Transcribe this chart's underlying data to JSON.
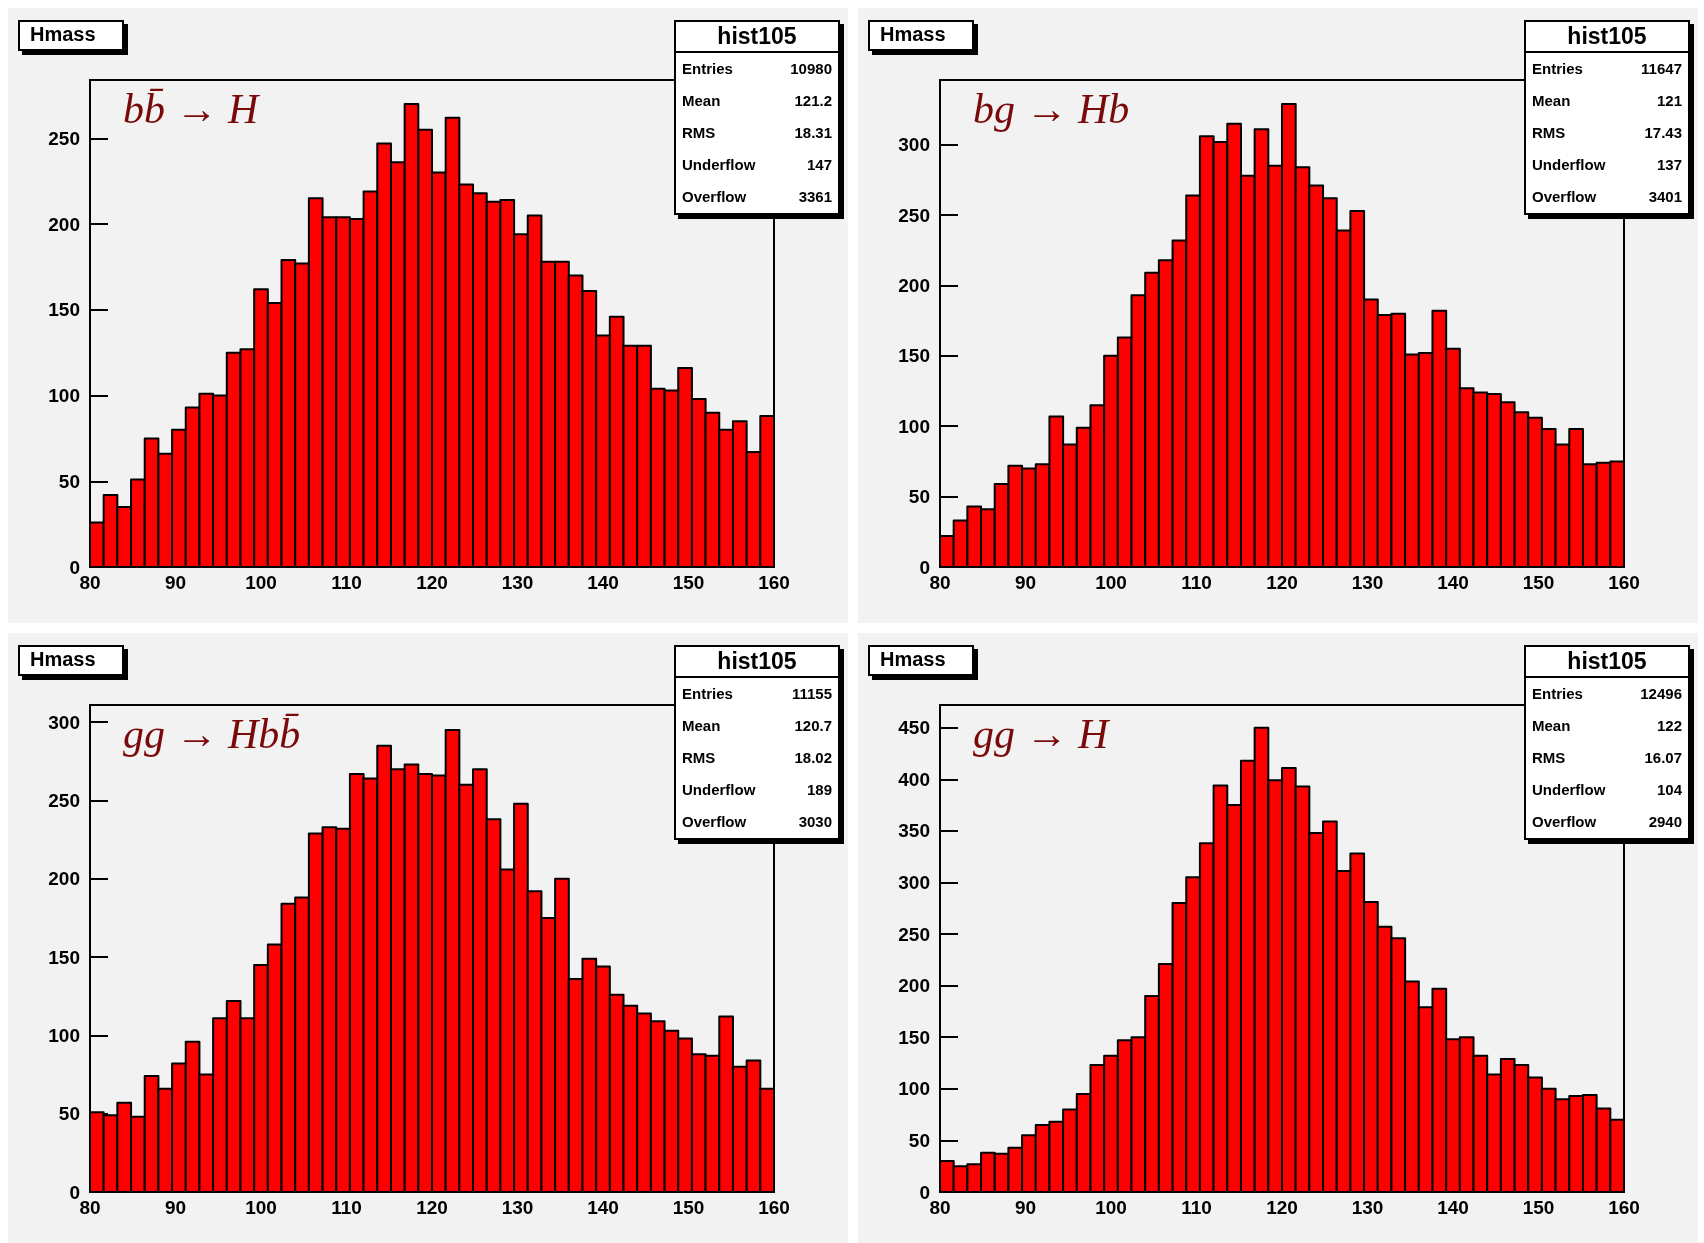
{
  "chart_data": [
    {
      "type": "histogram",
      "title": "Hmass",
      "color": "#ff0000",
      "xlim": [
        80,
        160
      ],
      "xticks": [
        80,
        90,
        100,
        110,
        120,
        130,
        140,
        150,
        160
      ],
      "ylim": [
        0,
        284
      ],
      "yticks": [
        0,
        50,
        100,
        150,
        200,
        250
      ],
      "grid": false,
      "bins": [
        80,
        81.6,
        83.2,
        84.8,
        86.4,
        88,
        89.6,
        91.2,
        92.8,
        94.4,
        96,
        97.6,
        99.2,
        100.8,
        102.4,
        104,
        105.6,
        107.2,
        108.8,
        110.4,
        112,
        113.6,
        115.2,
        116.8,
        118.4,
        120,
        121.6,
        123.2,
        124.8,
        126.4,
        128,
        129.6,
        131.2,
        132.8,
        134.4,
        136,
        137.6,
        139.2,
        140.8,
        142.4,
        144,
        145.6,
        147.2,
        148.8,
        150.4,
        152,
        153.6,
        155.2,
        156.8,
        158.4,
        160
      ],
      "values": [
        26,
        42,
        35,
        51,
        75,
        66,
        80,
        93,
        101,
        100,
        125,
        127,
        162,
        154,
        179,
        177,
        215,
        204,
        204,
        203,
        219,
        247,
        236,
        270,
        255,
        230,
        262,
        223,
        218,
        213,
        214,
        194,
        205,
        178,
        178,
        170,
        161,
        135,
        146,
        129,
        129,
        104,
        103,
        116,
        98,
        90,
        80,
        85,
        67,
        88
      ],
      "annotations": [
        "bb̄ → H",
        "hist105",
        "Entries",
        "10980",
        "Mean",
        "121.2",
        "RMS",
        "18.31",
        "Underflow",
        "147",
        "Overflow",
        "3361"
      ]
    },
    {
      "type": "histogram",
      "title": "Hmass",
      "color": "#ff0000",
      "xlim": [
        80,
        160
      ],
      "xticks": [
        80,
        90,
        100,
        110,
        120,
        130,
        140,
        150,
        160
      ],
      "ylim": [
        0,
        346
      ],
      "yticks": [
        0,
        50,
        100,
        150,
        200,
        250,
        300
      ],
      "grid": false,
      "bins": [
        80,
        81.6,
        83.2,
        84.8,
        86.4,
        88,
        89.6,
        91.2,
        92.8,
        94.4,
        96,
        97.6,
        99.2,
        100.8,
        102.4,
        104,
        105.6,
        107.2,
        108.8,
        110.4,
        112,
        113.6,
        115.2,
        116.8,
        118.4,
        120,
        121.6,
        123.2,
        124.8,
        126.4,
        128,
        129.6,
        131.2,
        132.8,
        134.4,
        136,
        137.6,
        139.2,
        140.8,
        142.4,
        144,
        145.6,
        147.2,
        148.8,
        150.4,
        152,
        153.6,
        155.2,
        156.8,
        158.4,
        160
      ],
      "values": [
        22,
        33,
        43,
        41,
        59,
        72,
        70,
        73,
        107,
        87,
        99,
        115,
        150,
        163,
        193,
        209,
        218,
        232,
        264,
        306,
        302,
        315,
        278,
        311,
        285,
        329,
        284,
        271,
        262,
        239,
        253,
        190,
        179,
        180,
        151,
        152,
        182,
        155,
        127,
        124,
        123,
        117,
        110,
        106,
        98,
        87,
        98,
        73,
        74,
        75
      ],
      "annotations": [
        "bg → Hb",
        "hist105",
        "Entries",
        "11647",
        "Mean",
        "121",
        "RMS",
        "17.43",
        "Underflow",
        "137",
        "Overflow",
        "3401"
      ]
    },
    {
      "type": "histogram",
      "title": "Hmass",
      "color": "#ff0000",
      "xlim": [
        80,
        160
      ],
      "xticks": [
        80,
        90,
        100,
        110,
        120,
        130,
        140,
        150,
        160
      ],
      "ylim": [
        0,
        311
      ],
      "yticks": [
        0,
        50,
        100,
        150,
        200,
        250,
        300
      ],
      "grid": false,
      "bins": [
        80,
        81.6,
        83.2,
        84.8,
        86.4,
        88,
        89.6,
        91.2,
        92.8,
        94.4,
        96,
        97.6,
        99.2,
        100.8,
        102.4,
        104,
        105.6,
        107.2,
        108.8,
        110.4,
        112,
        113.6,
        115.2,
        116.8,
        118.4,
        120,
        121.6,
        123.2,
        124.8,
        126.4,
        128,
        129.6,
        131.2,
        132.8,
        134.4,
        136,
        137.6,
        139.2,
        140.8,
        142.4,
        144,
        145.6,
        147.2,
        148.8,
        150.4,
        152,
        153.6,
        155.2,
        156.8,
        158.4,
        160
      ],
      "values": [
        51,
        49,
        57,
        48,
        74,
        66,
        82,
        96,
        75,
        111,
        122,
        111,
        145,
        158,
        184,
        188,
        229,
        233,
        232,
        267,
        264,
        285,
        270,
        273,
        267,
        266,
        295,
        260,
        270,
        238,
        206,
        248,
        192,
        175,
        200,
        136,
        149,
        144,
        126,
        119,
        114,
        109,
        103,
        98,
        88,
        87,
        112,
        80,
        84,
        66
      ],
      "annotations": [
        "gg → Hbb̄",
        "hist105",
        "Entries",
        "11155",
        "Mean",
        "120.7",
        "RMS",
        "18.02",
        "Underflow",
        "189",
        "Overflow",
        "3030"
      ]
    },
    {
      "type": "histogram",
      "title": "Hmass",
      "color": "#ff0000",
      "xlim": [
        80,
        160
      ],
      "xticks": [
        80,
        90,
        100,
        110,
        120,
        130,
        140,
        150,
        160
      ],
      "ylim": [
        0,
        472
      ],
      "yticks": [
        0,
        50,
        100,
        150,
        200,
        250,
        300,
        350,
        400,
        450
      ],
      "grid": false,
      "bins": [
        80,
        81.6,
        83.2,
        84.8,
        86.4,
        88,
        89.6,
        91.2,
        92.8,
        94.4,
        96,
        97.6,
        99.2,
        100.8,
        102.4,
        104,
        105.6,
        107.2,
        108.8,
        110.4,
        112,
        113.6,
        115.2,
        116.8,
        118.4,
        120,
        121.6,
        123.2,
        124.8,
        126.4,
        128,
        129.6,
        131.2,
        132.8,
        134.4,
        136,
        137.6,
        139.2,
        140.8,
        142.4,
        144,
        145.6,
        147.2,
        148.8,
        150.4,
        152,
        153.6,
        155.2,
        156.8,
        158.4,
        160
      ],
      "values": [
        30,
        25,
        27,
        38,
        37,
        43,
        55,
        65,
        68,
        80,
        95,
        123,
        132,
        147,
        150,
        190,
        221,
        280,
        305,
        338,
        394,
        375,
        418,
        450,
        399,
        411,
        393,
        348,
        359,
        311,
        328,
        281,
        257,
        246,
        204,
        179,
        197,
        148,
        150,
        132,
        114,
        129,
        123,
        111,
        100,
        90,
        93,
        94,
        81,
        70
      ],
      "annotations": [
        "gg → H",
        "hist105",
        "Entries",
        "12496",
        "Mean",
        "122",
        "RMS",
        "16.07",
        "Underflow",
        "104",
        "Overflow",
        "2940"
      ]
    }
  ]
}
